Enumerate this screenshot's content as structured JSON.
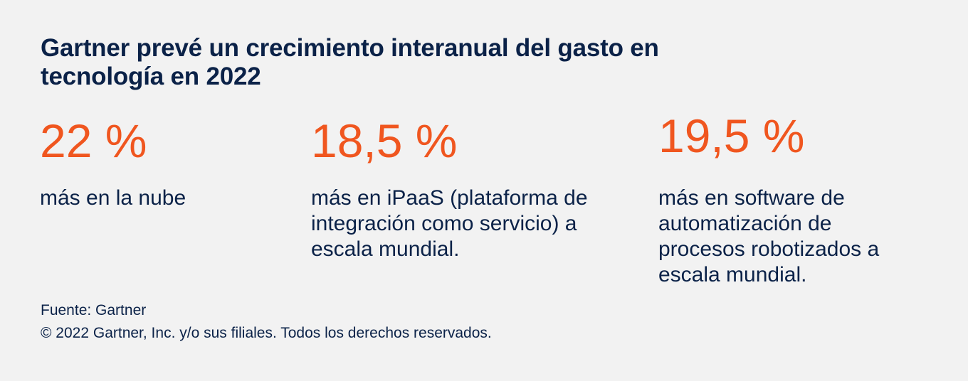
{
  "title": "Gartner prevé un crecimiento interanual del gasto en tecnología en 2022",
  "stats": [
    {
      "value": "22 %",
      "description": "más en la nube"
    },
    {
      "value": "18,5 %",
      "description": "más en iPaaS (plataforma de integración como servicio) a escala mundial."
    },
    {
      "value": "19,5 %",
      "description": "más en software de automatización de procesos robotizados a escala mundial."
    }
  ],
  "footer": {
    "source": "Fuente: Gartner",
    "copyright": "© 2022 Gartner, Inc. y/o sus filiales. Todos los derechos reservados."
  },
  "colors": {
    "background": "#f2f2f2",
    "text": "#0b2248",
    "accent": "#f0561f"
  }
}
